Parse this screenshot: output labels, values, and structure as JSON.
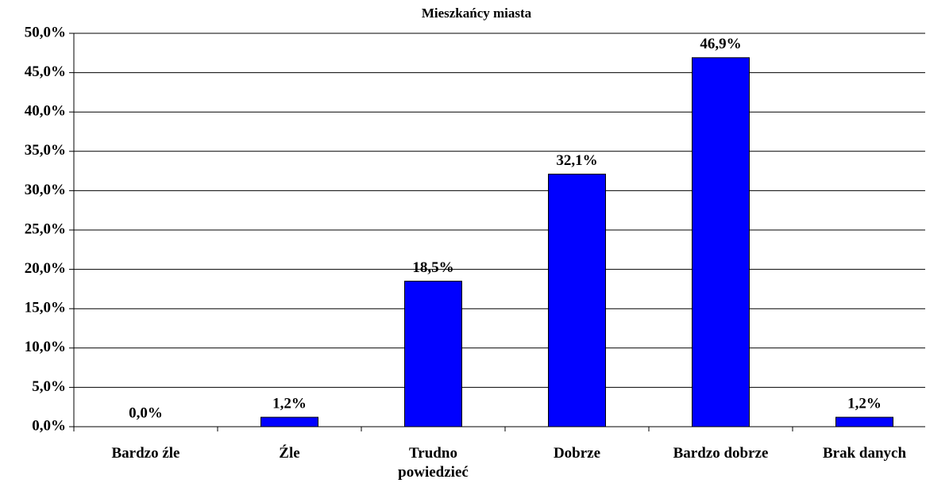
{
  "chart_data": {
    "type": "bar",
    "title": "Mieszkańcy miasta",
    "categories": [
      "Bardzo źle",
      "Źle",
      "Trudno powiedzieć",
      "Dobrze",
      "Bardzo dobrze",
      "Brak danych"
    ],
    "values": [
      0,
      1.2,
      18.5,
      32.1,
      46.9,
      1.2
    ],
    "value_labels": [
      "0,0%",
      "1,2%",
      "18,5%",
      "32,1%",
      "46,9%",
      "1,2%"
    ],
    "color": "#0000ff",
    "ylim": [
      0,
      50
    ],
    "yticks": [
      {
        "value": 0,
        "label": "0,0%"
      },
      {
        "value": 5,
        "label": "5,0%"
      },
      {
        "value": 10,
        "label": "10,0%"
      },
      {
        "value": 15,
        "label": "15,0%"
      },
      {
        "value": 20,
        "label": "20,0%"
      },
      {
        "value": 25,
        "label": "25,0%"
      },
      {
        "value": 30,
        "label": "30,0%"
      },
      {
        "value": 35,
        "label": "35,0%"
      },
      {
        "value": 40,
        "label": "40,0%"
      },
      {
        "value": 45,
        "label": "45,0%"
      },
      {
        "value": 50,
        "label": "50,0%"
      }
    ],
    "grid": true
  }
}
